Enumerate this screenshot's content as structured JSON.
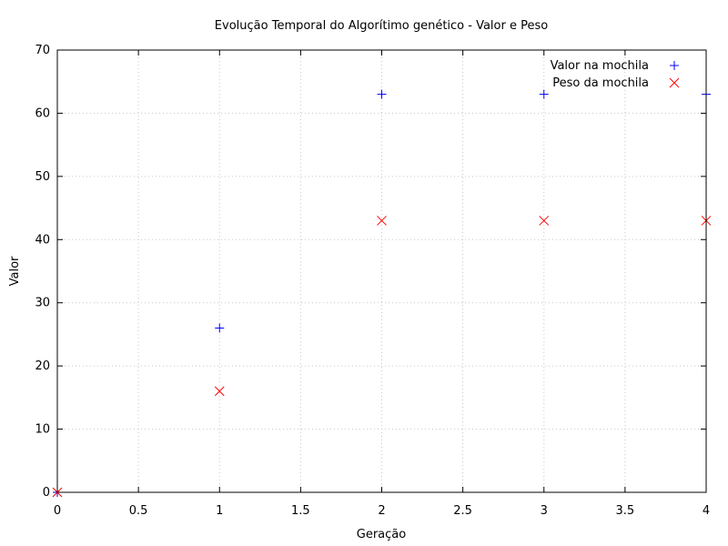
{
  "chart_data": {
    "type": "scatter",
    "title": "Evolução Temporal do Algorítimo genético - Valor e Peso",
    "xlabel": "Geração",
    "ylabel": "Valor",
    "xlim": [
      0,
      4
    ],
    "ylim": [
      0,
      70
    ],
    "x_ticks": [
      0,
      0.5,
      1,
      1.5,
      2,
      2.5,
      3,
      3.5,
      4
    ],
    "x_tick_labels": [
      "0",
      "0.5",
      "1",
      "1.5",
      "2",
      "2.5",
      "3",
      "3.5",
      "4"
    ],
    "y_ticks": [
      0,
      10,
      20,
      30,
      40,
      50,
      60,
      70
    ],
    "y_tick_labels": [
      "0",
      "10",
      "20",
      "30",
      "40",
      "50",
      "60",
      "70"
    ],
    "grid": true,
    "legend_position": "top-right",
    "series": [
      {
        "name": "Valor na mochila",
        "marker": "plus",
        "color": "#0000ff",
        "points": [
          [
            0,
            0
          ],
          [
            1,
            26
          ],
          [
            2,
            63
          ],
          [
            3,
            63
          ],
          [
            4,
            63
          ]
        ]
      },
      {
        "name": "Peso da mochila",
        "marker": "cross",
        "color": "#ff0000",
        "points": [
          [
            0,
            0
          ],
          [
            1,
            16
          ],
          [
            2,
            43
          ],
          [
            3,
            43
          ],
          [
            4,
            43
          ]
        ]
      }
    ]
  }
}
